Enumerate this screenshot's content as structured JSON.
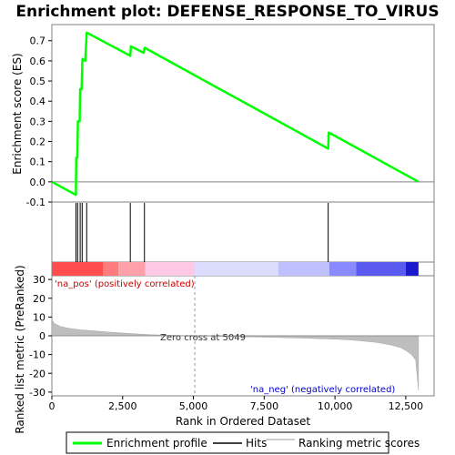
{
  "chart_data": {
    "type": "line",
    "title": "Enrichment plot: DEFENSE_RESPONSE_TO_VIRUS",
    "top_panel": {
      "ylabel": "Enrichment score (ES)",
      "ylim": [
        -0.1,
        0.78
      ],
      "yticks": [
        -0.1,
        0.0,
        0.1,
        0.2,
        0.3,
        0.4,
        0.5,
        0.6,
        0.7
      ],
      "ytick_labels": [
        "-0.1",
        "0.0",
        "0.1",
        "0.2",
        "0.3",
        "0.4",
        "0.5",
        "0.6",
        "0.7"
      ],
      "series": [
        {
          "name": "Enrichment profile",
          "color": "#00ff00",
          "x": [
            0,
            850,
            860,
            900,
            920,
            980,
            1000,
            1050,
            1080,
            1180,
            1230,
            2770,
            2790,
            3240,
            3280,
            9760,
            9780,
            12950
          ],
          "y": [
            0.0,
            -0.065,
            0.12,
            0.12,
            0.3,
            0.3,
            0.46,
            0.46,
            0.61,
            0.6,
            0.74,
            0.625,
            0.672,
            0.64,
            0.665,
            0.165,
            0.245,
            0.0
          ]
        }
      ]
    },
    "hits": {
      "name": "Hits",
      "color": "#000000",
      "positions": [
        850,
        910,
        1000,
        1070,
        1230,
        2770,
        3270,
        9760
      ]
    },
    "color_bar": {
      "segments": [
        {
          "start": 0,
          "end": 1800,
          "color": "#ff4d4d"
        },
        {
          "start": 1800,
          "end": 2350,
          "color": "#ff7a7a"
        },
        {
          "start": 2350,
          "end": 3300,
          "color": "#ffa0a8"
        },
        {
          "start": 3300,
          "end": 5049,
          "color": "#ffc8e4"
        },
        {
          "start": 5049,
          "end": 8000,
          "color": "#dcdcff"
        },
        {
          "start": 8000,
          "end": 9800,
          "color": "#c0c0ff"
        },
        {
          "start": 9800,
          "end": 10750,
          "color": "#8a8aff"
        },
        {
          "start": 10750,
          "end": 12500,
          "color": "#5a5aee"
        },
        {
          "start": 12500,
          "end": 12950,
          "color": "#1a1acc"
        }
      ]
    },
    "bottom_panel": {
      "ylabel": "Ranked list metric (PreRanked)",
      "xlabel": "Rank in Ordered Dataset",
      "ylim": [
        -32,
        32
      ],
      "yticks": [
        -30,
        -20,
        -10,
        0,
        10,
        20,
        30
      ],
      "ytick_labels": [
        "-30",
        "-20",
        "-10",
        "0",
        "10",
        "20",
        "30"
      ],
      "xlim": [
        0,
        13500
      ],
      "xticks": [
        0,
        2500,
        5000,
        7500,
        10000,
        12500
      ],
      "xtick_labels": [
        "0",
        "2,500",
        "5,000",
        "7,500",
        "10,000",
        "12,500"
      ],
      "metric": {
        "name": "Ranking metric scores",
        "color": "#bebebe",
        "x": [
          0,
          100,
          300,
          600,
          1000,
          1500,
          2000,
          2500,
          3000,
          3500,
          4000,
          4500,
          5049,
          6000,
          7000,
          8000,
          9000,
          10000,
          10500,
          11000,
          11500,
          12000,
          12300,
          12500,
          12700,
          12850,
          12950
        ],
        "y": [
          8.5,
          6.5,
          5.0,
          4.0,
          3.2,
          2.6,
          2.0,
          1.5,
          1.0,
          0.6,
          0.35,
          0.15,
          0.0,
          -0.3,
          -0.6,
          -0.9,
          -1.3,
          -1.8,
          -2.2,
          -2.8,
          -3.6,
          -5.0,
          -6.2,
          -7.8,
          -10.0,
          -13.0,
          -29.0
        ]
      },
      "annotations": {
        "pos": "'na_pos' (positively correlated)",
        "neg": "'na_neg' (negatively correlated)",
        "zero_cross": "Zero cross at 5049",
        "zero_cross_x": 5049
      }
    },
    "legend": [
      {
        "label": "Enrichment profile",
        "color": "#00ff00"
      },
      {
        "label": "Hits",
        "color": "#000000"
      },
      {
        "label": "Ranking metric scores",
        "color": "#bebebe"
      }
    ]
  }
}
